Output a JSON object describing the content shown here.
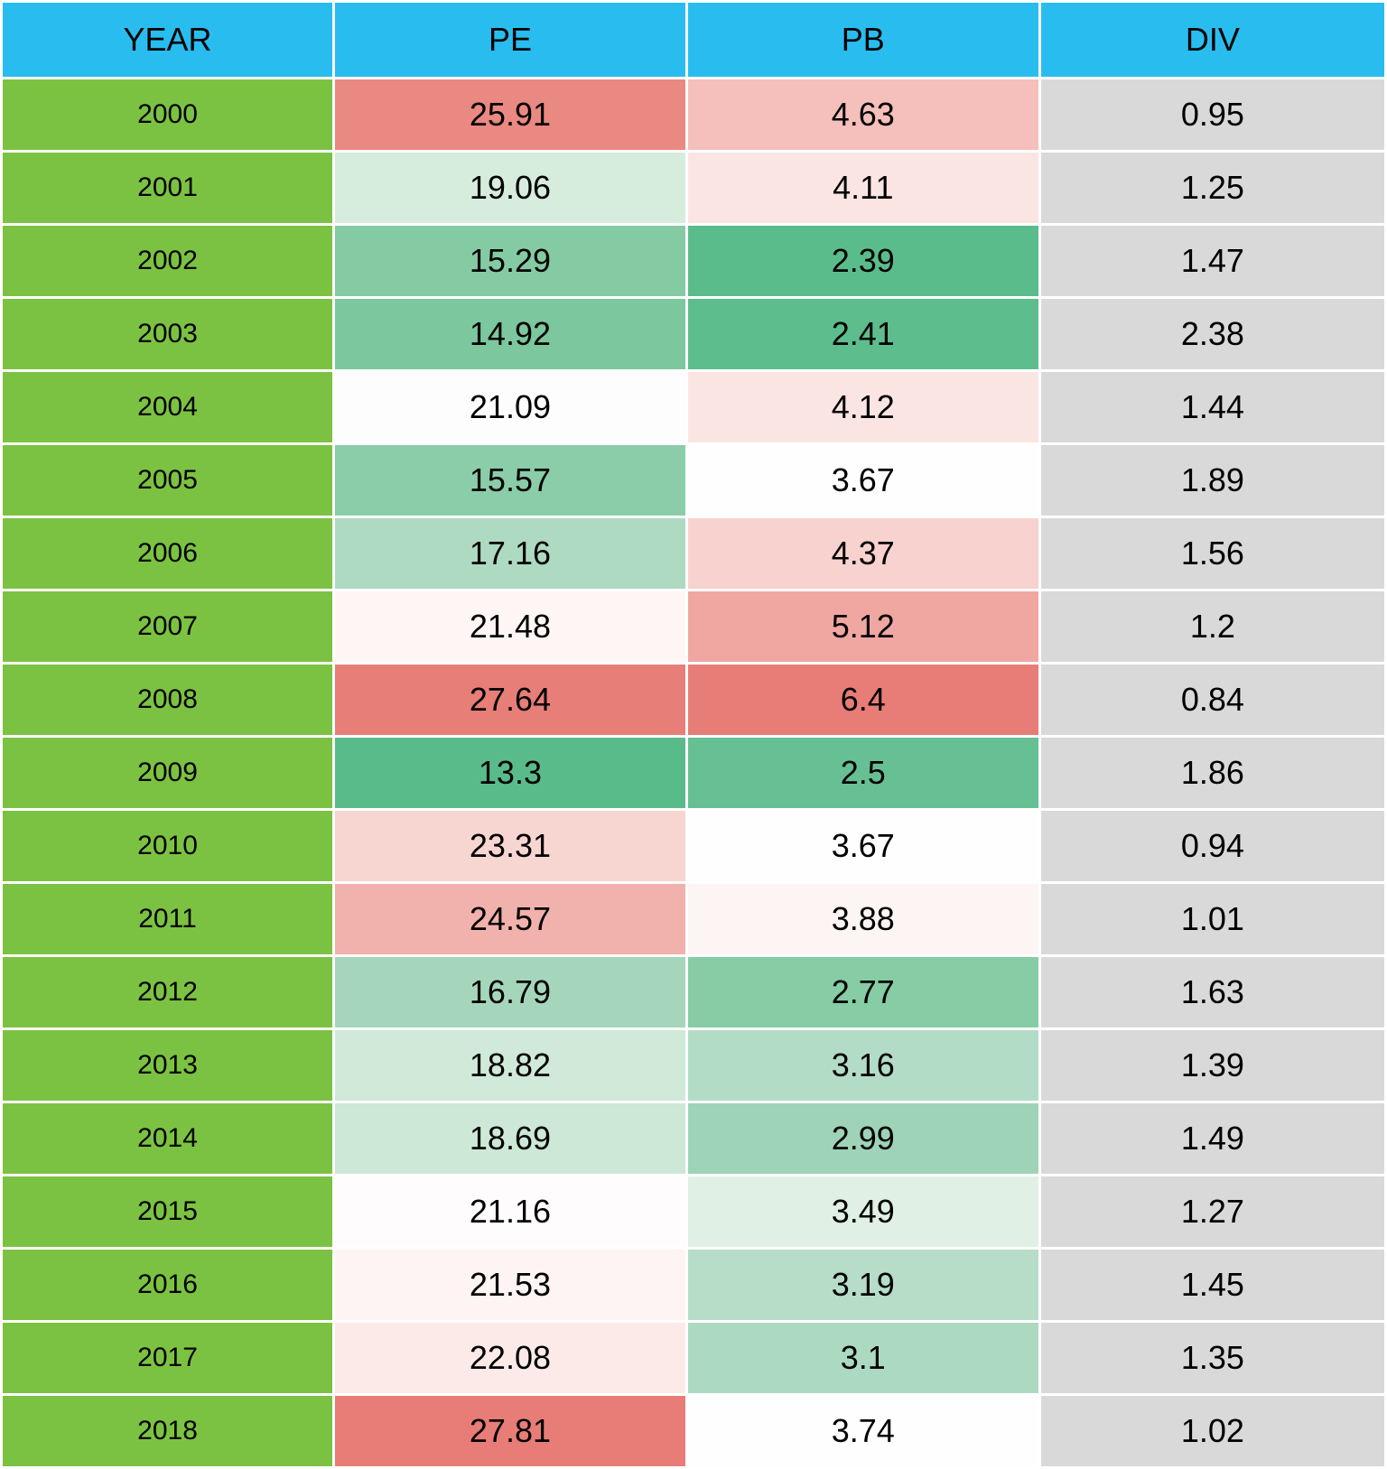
{
  "table": {
    "type": "heatmap-table",
    "columns": [
      "YEAR",
      "PE",
      "PB",
      "DIV"
    ],
    "header_bg": "#29bdef",
    "year_column_bg": "#7cc242",
    "div_column_bg": "#d9d9d9",
    "cell_border_color": "#ffffff",
    "font_family": "Arial",
    "header_fontsize": 36,
    "cell_fontsize": 36,
    "year_fontsize": 30,
    "heatmap_scale": {
      "low_color": "#57bb8a",
      "mid_color": "#ffffff",
      "high_color": "#e67c73"
    },
    "rows": [
      {
        "year": "2000",
        "pe": "25.91",
        "pe_bg": "#ea8882",
        "pb": "4.63",
        "pb_bg": "#f5bfbb",
        "div": "0.95"
      },
      {
        "year": "2001",
        "pe": "19.06",
        "pe_bg": "#d6ecdc",
        "pb": "4.11",
        "pb_bg": "#fbe5e3",
        "div": "1.25"
      },
      {
        "year": "2002",
        "pe": "15.29",
        "pe_bg": "#84cba3",
        "pb": "2.39",
        "pb_bg": "#5bbc8b",
        "div": "1.47"
      },
      {
        "year": "2003",
        "pe": "14.92",
        "pe_bg": "#7cc79d",
        "pb": "2.41",
        "pb_bg": "#5dbd8d",
        "div": "2.38"
      },
      {
        "year": "2004",
        "pe": "21.09",
        "pe_bg": "#fefdfd",
        "pb": "4.12",
        "pb_bg": "#fbe5e3",
        "div": "1.44"
      },
      {
        "year": "2005",
        "pe": "15.57",
        "pe_bg": "#8acda8",
        "pb": "3.67",
        "pb_bg": "#fefefe",
        "div": "1.89"
      },
      {
        "year": "2006",
        "pe": "17.16",
        "pe_bg": "#aedac2",
        "pb": "4.37",
        "pb_bg": "#f7d2cf",
        "div": "1.56"
      },
      {
        "year": "2007",
        "pe": "21.48",
        "pe_bg": "#fdf6f5",
        "pb": "5.12",
        "pb_bg": "#f0a7a2",
        "div": "1.2"
      },
      {
        "year": "2008",
        "pe": "27.64",
        "pe_bg": "#e77e77",
        "pb": "6.4",
        "pb_bg": "#e77d76",
        "div": "0.84"
      },
      {
        "year": "2009",
        "pe": "13.3",
        "pe_bg": "#5abb8a",
        "pb": "2.5",
        "pb_bg": "#66c093",
        "div": "1.86"
      },
      {
        "year": "2010",
        "pe": "23.31",
        "pe_bg": "#f7d5d1",
        "pb": "3.67",
        "pb_bg": "#fefefe",
        "div": "0.94"
      },
      {
        "year": "2011",
        "pe": "24.57",
        "pe_bg": "#f1b1ac",
        "pb": "3.88",
        "pb_bg": "#fdf5f4",
        "div": "1.01"
      },
      {
        "year": "2012",
        "pe": "16.79",
        "pe_bg": "#a5d6bb",
        "pb": "2.77",
        "pb_bg": "#86cca5",
        "div": "1.63"
      },
      {
        "year": "2013",
        "pe": "18.82",
        "pe_bg": "#d0e9d8",
        "pb": "3.16",
        "pb_bg": "#b3dcc6",
        "div": "1.39"
      },
      {
        "year": "2014",
        "pe": "18.69",
        "pe_bg": "#cde8d6",
        "pb": "2.99",
        "pb_bg": "#9fd3b7",
        "div": "1.49"
      },
      {
        "year": "2015",
        "pe": "21.16",
        "pe_bg": "#fefcfc",
        "pb": "3.49",
        "pb_bg": "#e0f0e5",
        "div": "1.27"
      },
      {
        "year": "2016",
        "pe": "21.53",
        "pe_bg": "#fdf4f3",
        "pb": "3.19",
        "pb_bg": "#b7ddc9",
        "div": "1.45"
      },
      {
        "year": "2017",
        "pe": "22.08",
        "pe_bg": "#fbeae8",
        "pb": "3.1",
        "pb_bg": "#acdac1",
        "div": "1.35"
      },
      {
        "year": "2018",
        "pe": "27.81",
        "pe_bg": "#e77d76",
        "pb": "3.74",
        "pb_bg": "#fefefe",
        "div": "1.02"
      }
    ]
  }
}
